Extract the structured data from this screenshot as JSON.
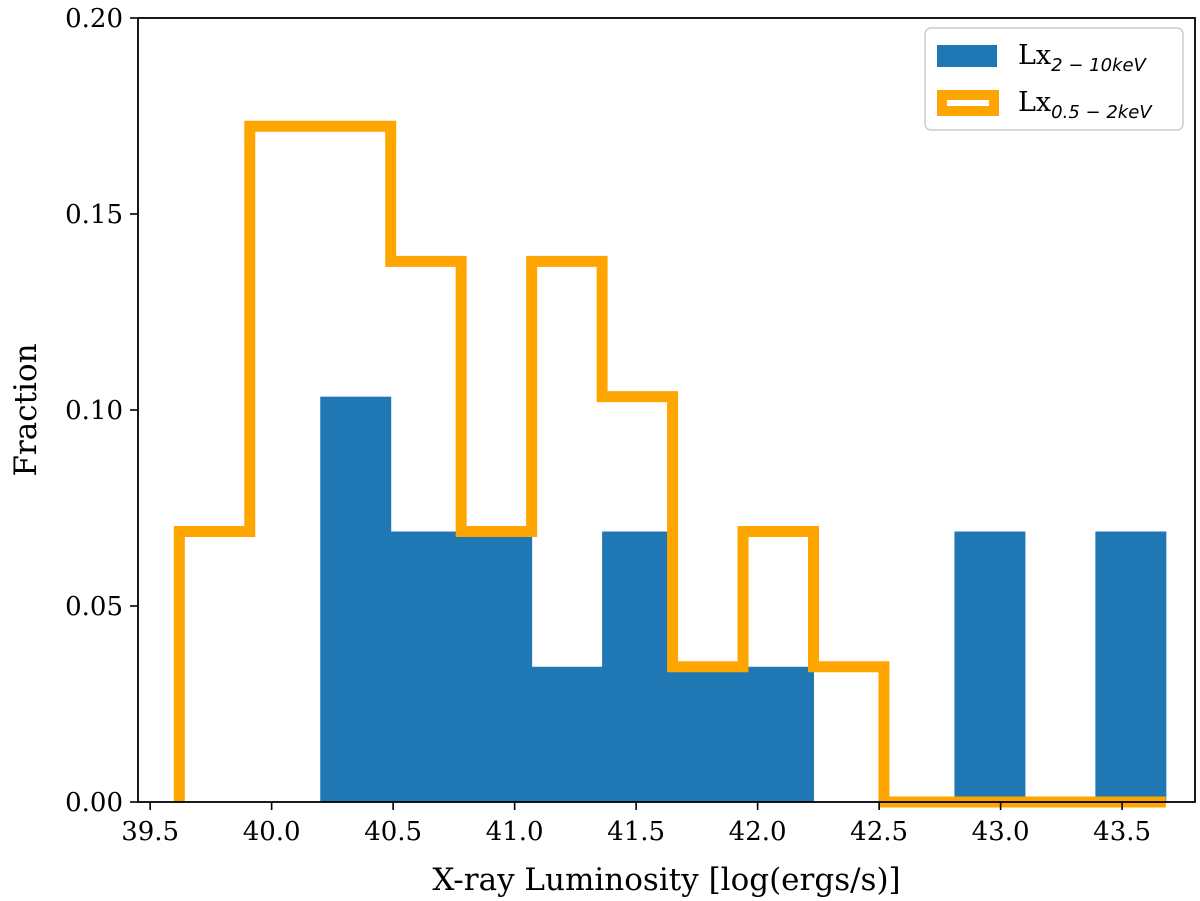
{
  "chart_data": {
    "type": "bar",
    "xlabel": "X-ray Luminosity [log(ergs/s)]",
    "ylabel": "Fraction",
    "xlim": [
      39.45,
      43.8
    ],
    "ylim": [
      0,
      0.2
    ],
    "x_ticks": [
      "39.5",
      "40.0",
      "40.5",
      "41.0",
      "41.5",
      "42.0",
      "42.5",
      "43.0",
      "43.5"
    ],
    "y_ticks": [
      "0.00",
      "0.05",
      "0.10",
      "0.15",
      "0.20"
    ],
    "legend_position": "top-right",
    "series": [
      {
        "name": "Lx",
        "subscript": "2 − 10keV",
        "style": "filled",
        "color": "#1f77b4",
        "bin_edges": [
          40.2,
          40.49,
          40.78,
          41.07,
          41.36,
          41.65,
          41.94,
          42.23,
          42.52,
          42.81,
          43.1,
          43.39,
          43.68
        ],
        "values": [
          0.1034,
          0.069,
          0.069,
          0.0345,
          0.069,
          0.0345,
          0.0345,
          0,
          0,
          0.069,
          0,
          0.069
        ]
      },
      {
        "name": "Lx",
        "subscript": "0.5 − 2keV",
        "style": "step",
        "color": "#ffa500",
        "bin_edges": [
          39.62,
          39.91,
          40.2,
          40.49,
          40.78,
          41.07,
          41.36,
          41.65,
          41.94,
          42.23,
          42.52,
          42.81,
          43.1,
          43.39,
          43.68
        ],
        "values": [
          0.069,
          0.1724,
          0.1724,
          0.1379,
          0.069,
          0.1379,
          0.1034,
          0.0345,
          0.069,
          0.0345,
          0,
          0,
          0,
          0
        ]
      }
    ]
  }
}
